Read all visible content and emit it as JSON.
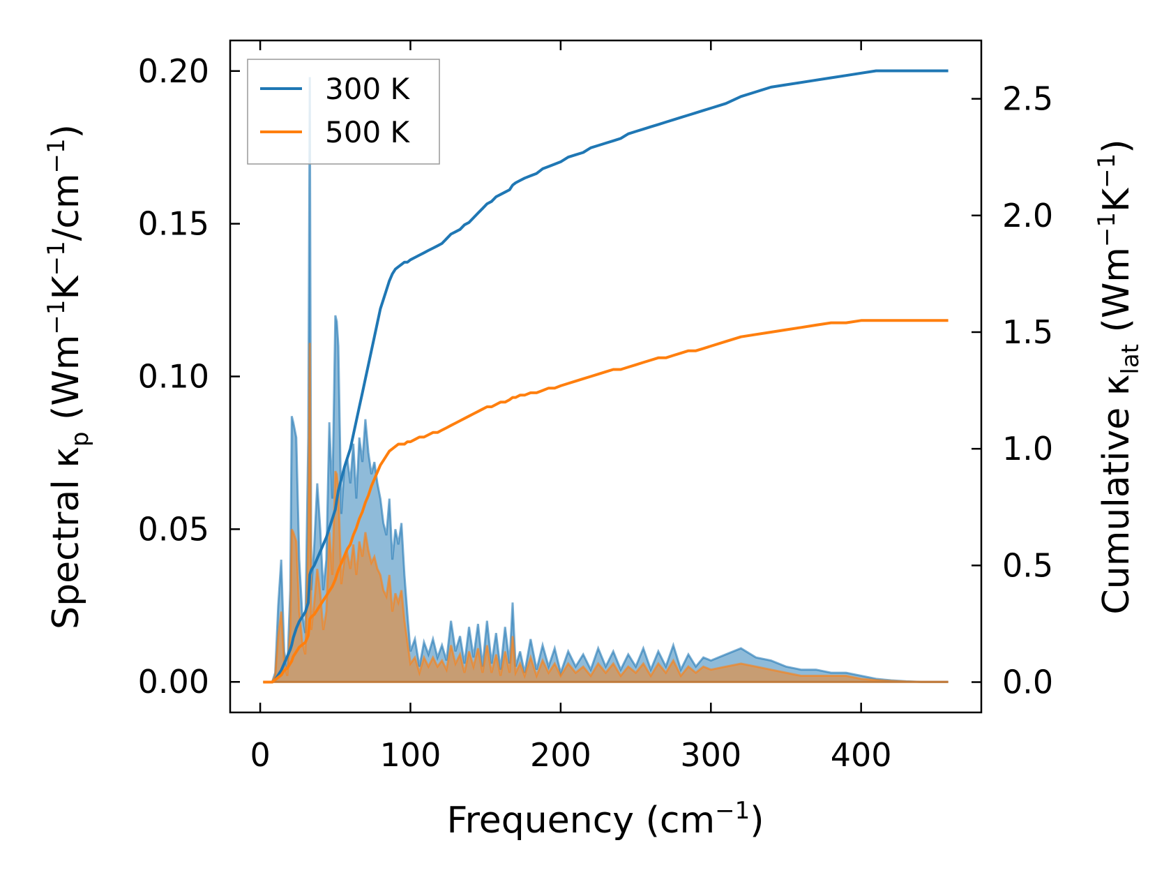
{
  "chart_data": {
    "type": "line",
    "title": "",
    "xlabel": "Frequency (cm",
    "xlabel_sup": "−1",
    "xlabel_tail": ")",
    "ylabel_left_parts": [
      "Spectral κ",
      "p",
      " (Wm",
      "−1",
      "K",
      "−1",
      "/cm",
      "−1",
      ")"
    ],
    "ylabel_right_parts": [
      "Cumulative κ",
      "lat",
      " (Wm",
      "−1",
      "K",
      "−1",
      ")"
    ],
    "xlim": [
      -20,
      480
    ],
    "ylim_left": [
      -0.01,
      0.21
    ],
    "ylim_right": [
      -0.13,
      2.75
    ],
    "x_ticks": [
      0,
      100,
      200,
      300,
      400
    ],
    "x_tick_labels": [
      "0",
      "100",
      "200",
      "300",
      "400"
    ],
    "y_left_ticks": [
      0.0,
      0.05,
      0.1,
      0.15,
      0.2
    ],
    "y_left_tick_labels": [
      "0.00",
      "0.05",
      "0.10",
      "0.15",
      "0.20"
    ],
    "y_right_ticks": [
      0.0,
      0.5,
      1.0,
      1.5,
      2.0,
      2.5
    ],
    "y_right_tick_labels": [
      "0.0",
      "0.5",
      "1.0",
      "1.5",
      "2.0",
      "2.5"
    ],
    "legend_position": "top-left",
    "legend": [
      {
        "label": "300 K",
        "color": "#1f77b4"
      },
      {
        "label": "500 K",
        "color": "#ff7f0e"
      }
    ],
    "spectral_x": [
      2,
      8,
      10,
      12,
      14,
      16,
      18,
      20,
      21,
      22,
      24,
      26,
      28,
      30,
      32,
      33,
      34,
      36,
      38,
      40,
      42,
      44,
      46,
      48,
      50,
      51,
      52,
      54,
      56,
      58,
      60,
      62,
      64,
      66,
      68,
      70,
      72,
      74,
      76,
      78,
      80,
      82,
      84,
      86,
      88,
      90,
      92,
      94,
      96,
      98,
      100,
      103,
      106,
      109,
      112,
      115,
      118,
      121,
      124,
      127,
      130,
      133,
      136,
      139,
      142,
      145,
      148,
      151,
      154,
      157,
      160,
      163,
      166,
      168,
      170,
      173,
      176,
      180,
      184,
      188,
      192,
      196,
      200,
      205,
      210,
      215,
      220,
      225,
      230,
      235,
      240,
      245,
      250,
      255,
      260,
      265,
      270,
      275,
      280,
      285,
      290,
      295,
      300,
      310,
      320,
      330,
      340,
      350,
      360,
      370,
      380,
      390,
      400,
      410,
      420,
      430,
      440,
      450,
      458
    ],
    "series": [
      {
        "name": "300 K",
        "color": "#1f77b4",
        "spectral": [
          0,
          0,
          0.003,
          0.025,
          0.04,
          0.01,
          0.004,
          0.03,
          0.087,
          0.085,
          0.08,
          0.04,
          0.022,
          0.016,
          0.08,
          0.198,
          0.03,
          0.045,
          0.065,
          0.05,
          0.03,
          0.04,
          0.085,
          0.06,
          0.12,
          0.118,
          0.11,
          0.055,
          0.07,
          0.073,
          0.065,
          0.078,
          0.06,
          0.08,
          0.072,
          0.086,
          0.075,
          0.068,
          0.072,
          0.065,
          0.06,
          0.052,
          0.048,
          0.06,
          0.04,
          0.05,
          0.045,
          0.052,
          0.035,
          0.022,
          0.01,
          0.014,
          0.005,
          0.013,
          0.009,
          0.014,
          0.008,
          0.012,
          0.007,
          0.02,
          0.01,
          0.015,
          0.006,
          0.018,
          0.008,
          0.019,
          0.005,
          0.02,
          0.006,
          0.016,
          0.004,
          0.018,
          0.006,
          0.026,
          0.005,
          0.01,
          0.003,
          0.014,
          0.004,
          0.012,
          0.005,
          0.011,
          0.003,
          0.01,
          0.005,
          0.009,
          0.004,
          0.011,
          0.005,
          0.01,
          0.004,
          0.009,
          0.005,
          0.011,
          0.004,
          0.01,
          0.005,
          0.012,
          0.004,
          0.009,
          0.005,
          0.008,
          0.007,
          0.009,
          0.011,
          0.008,
          0.007,
          0.005,
          0.004,
          0.004,
          0.003,
          0.003,
          0.002,
          0.001,
          0.0005,
          0.0002,
          0,
          0,
          0
        ],
        "cumulative": [
          0,
          0,
          0.01,
          0.03,
          0.05,
          0.08,
          0.11,
          0.14,
          0.16,
          0.19,
          0.23,
          0.26,
          0.28,
          0.3,
          0.34,
          0.46,
          0.48,
          0.5,
          0.53,
          0.56,
          0.59,
          0.62,
          0.66,
          0.7,
          0.74,
          0.78,
          0.82,
          0.87,
          0.92,
          0.96,
          1.0,
          1.06,
          1.12,
          1.18,
          1.24,
          1.3,
          1.36,
          1.42,
          1.48,
          1.54,
          1.6,
          1.64,
          1.68,
          1.72,
          1.75,
          1.77,
          1.78,
          1.79,
          1.8,
          1.8,
          1.81,
          1.82,
          1.83,
          1.84,
          1.85,
          1.86,
          1.87,
          1.88,
          1.9,
          1.92,
          1.93,
          1.94,
          1.96,
          1.97,
          1.99,
          2.01,
          2.03,
          2.05,
          2.06,
          2.08,
          2.09,
          2.1,
          2.11,
          2.13,
          2.14,
          2.15,
          2.16,
          2.17,
          2.18,
          2.2,
          2.21,
          2.22,
          2.23,
          2.25,
          2.26,
          2.27,
          2.29,
          2.3,
          2.31,
          2.32,
          2.33,
          2.35,
          2.36,
          2.37,
          2.38,
          2.39,
          2.4,
          2.41,
          2.42,
          2.43,
          2.44,
          2.45,
          2.46,
          2.48,
          2.51,
          2.53,
          2.55,
          2.56,
          2.57,
          2.58,
          2.59,
          2.6,
          2.61,
          2.62,
          2.62,
          2.62,
          2.62,
          2.62,
          2.62
        ]
      },
      {
        "name": "500 K",
        "color": "#ff7f0e",
        "spectral": [
          0,
          0,
          0.002,
          0.015,
          0.023,
          0.006,
          0.002,
          0.017,
          0.05,
          0.049,
          0.046,
          0.023,
          0.013,
          0.009,
          0.046,
          0.111,
          0.017,
          0.026,
          0.037,
          0.029,
          0.017,
          0.023,
          0.049,
          0.035,
          0.069,
          0.068,
          0.063,
          0.032,
          0.04,
          0.042,
          0.037,
          0.045,
          0.035,
          0.046,
          0.041,
          0.049,
          0.043,
          0.039,
          0.041,
          0.037,
          0.035,
          0.03,
          0.028,
          0.035,
          0.023,
          0.029,
          0.026,
          0.03,
          0.02,
          0.013,
          0.006,
          0.008,
          0.003,
          0.008,
          0.005,
          0.008,
          0.005,
          0.007,
          0.004,
          0.012,
          0.006,
          0.009,
          0.003,
          0.01,
          0.005,
          0.011,
          0.003,
          0.012,
          0.003,
          0.009,
          0.002,
          0.01,
          0.003,
          0.015,
          0.003,
          0.006,
          0.002,
          0.008,
          0.002,
          0.007,
          0.003,
          0.006,
          0.002,
          0.006,
          0.003,
          0.005,
          0.002,
          0.006,
          0.003,
          0.006,
          0.002,
          0.005,
          0.003,
          0.006,
          0.002,
          0.006,
          0.003,
          0.007,
          0.002,
          0.005,
          0.003,
          0.005,
          0.004,
          0.005,
          0.006,
          0.005,
          0.004,
          0.003,
          0.002,
          0.002,
          0.002,
          0.002,
          0.001,
          0.0006,
          0.0003,
          0.0001,
          0,
          0,
          0
        ],
        "cumulative": [
          0,
          0,
          0.01,
          0.02,
          0.03,
          0.05,
          0.06,
          0.08,
          0.09,
          0.11,
          0.13,
          0.15,
          0.16,
          0.17,
          0.2,
          0.27,
          0.28,
          0.29,
          0.31,
          0.33,
          0.35,
          0.37,
          0.39,
          0.41,
          0.44,
          0.46,
          0.48,
          0.51,
          0.54,
          0.57,
          0.59,
          0.63,
          0.66,
          0.7,
          0.73,
          0.77,
          0.8,
          0.84,
          0.87,
          0.9,
          0.93,
          0.95,
          0.97,
          0.99,
          1.0,
          1.01,
          1.02,
          1.02,
          1.02,
          1.03,
          1.03,
          1.04,
          1.05,
          1.05,
          1.06,
          1.07,
          1.07,
          1.08,
          1.09,
          1.1,
          1.11,
          1.12,
          1.13,
          1.14,
          1.15,
          1.16,
          1.17,
          1.18,
          1.18,
          1.19,
          1.2,
          1.2,
          1.21,
          1.22,
          1.22,
          1.23,
          1.23,
          1.24,
          1.24,
          1.25,
          1.26,
          1.26,
          1.27,
          1.28,
          1.29,
          1.3,
          1.31,
          1.32,
          1.33,
          1.34,
          1.34,
          1.35,
          1.36,
          1.37,
          1.38,
          1.39,
          1.39,
          1.4,
          1.41,
          1.42,
          1.42,
          1.43,
          1.44,
          1.46,
          1.48,
          1.49,
          1.5,
          1.51,
          1.52,
          1.53,
          1.54,
          1.54,
          1.55,
          1.55,
          1.55,
          1.55,
          1.55,
          1.55,
          1.55
        ]
      }
    ]
  }
}
